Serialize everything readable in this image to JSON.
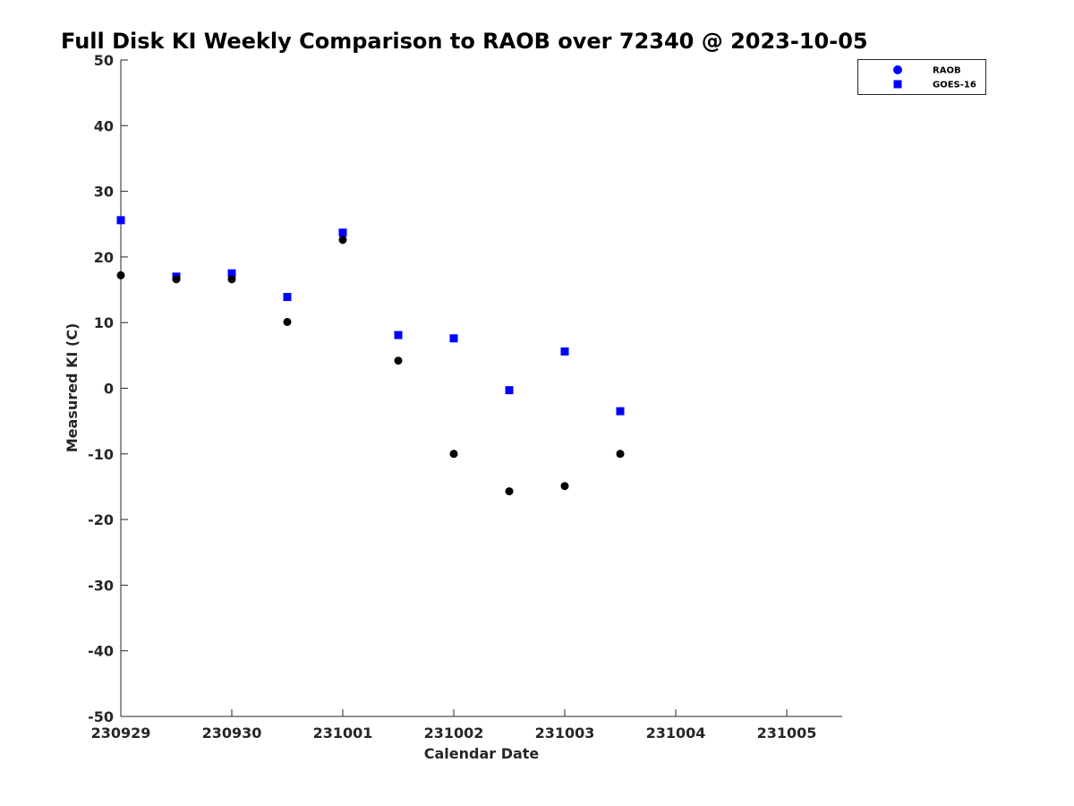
{
  "chart_data": {
    "type": "scatter",
    "title": "Full Disk KI Weekly Comparison to RAOB over 72340 @ 2023-10-05",
    "xlabel": "Calendar Date",
    "ylabel": "Measured KI (C)",
    "xlim": [
      "2023-09-29T00:00",
      "2023-10-05T12:00"
    ],
    "ylim": [
      -50,
      50
    ],
    "x_ticks": [
      "2023-09-29T00:00",
      "2023-09-30T00:00",
      "2023-10-01T00:00",
      "2023-10-02T00:00",
      "2023-10-03T00:00",
      "2023-10-04T00:00",
      "2023-10-05T00:00"
    ],
    "x_tick_labels": [
      "230929",
      "230930",
      "231001",
      "231002",
      "231003",
      "231004",
      "231005"
    ],
    "y_ticks": [
      -50,
      -40,
      -30,
      -20,
      -10,
      0,
      10,
      20,
      30,
      40,
      50
    ],
    "grid": false,
    "legend_position": "top-right",
    "series": [
      {
        "name": "RAOB",
        "marker": "circle",
        "color": "#000000",
        "legend_color": "#0000ff",
        "points": [
          {
            "x": "2023-09-29T00:00",
            "y": 17.2
          },
          {
            "x": "2023-09-29T12:00",
            "y": 16.6
          },
          {
            "x": "2023-09-30T00:00",
            "y": 16.6
          },
          {
            "x": "2023-09-30T12:00",
            "y": 10.1
          },
          {
            "x": "2023-10-01T00:00",
            "y": 22.6
          },
          {
            "x": "2023-10-01T12:00",
            "y": 4.2
          },
          {
            "x": "2023-10-02T00:00",
            "y": -10.0
          },
          {
            "x": "2023-10-02T12:00",
            "y": -15.7
          },
          {
            "x": "2023-10-03T00:00",
            "y": -14.9
          },
          {
            "x": "2023-10-03T12:00",
            "y": -10.0
          }
        ]
      },
      {
        "name": "GOES-16",
        "marker": "square",
        "color": "#0000ff",
        "legend_color": "#0000ff",
        "points": [
          {
            "x": "2023-09-29T00:00",
            "y": 25.6
          },
          {
            "x": "2023-09-29T12:00",
            "y": 17.0
          },
          {
            "x": "2023-09-30T00:00",
            "y": 17.5
          },
          {
            "x": "2023-09-30T12:00",
            "y": 13.9
          },
          {
            "x": "2023-10-01T00:00",
            "y": 23.7
          },
          {
            "x": "2023-10-01T12:00",
            "y": 8.1
          },
          {
            "x": "2023-10-02T00:00",
            "y": 7.6
          },
          {
            "x": "2023-10-02T12:00",
            "y": -0.3
          },
          {
            "x": "2023-10-03T00:00",
            "y": 5.6
          },
          {
            "x": "2023-10-03T12:00",
            "y": -3.5
          }
        ]
      }
    ]
  }
}
